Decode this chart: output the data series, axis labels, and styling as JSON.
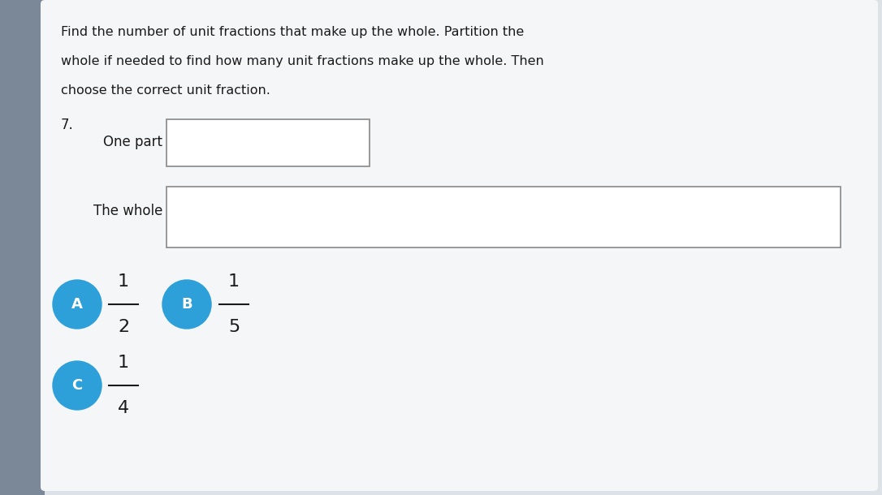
{
  "bg_left_color": "#8a9aaa",
  "bg_main_color": "#dde2e8",
  "card_color": "#f0f2f4",
  "white": "#ffffff",
  "border_color": "#888888",
  "text_color": "#1a1a1a",
  "circle_color": "#2d9fd9",
  "circle_text_color": "#ffffff",
  "title_line1": "Find the number of unit fractions that make up the whole. Partition the",
  "title_line2": "whole if needed to find how many unit fractions make up the whole. Then",
  "title_line3": "choose the correct unit fraction.",
  "question_num": "7.",
  "one_part_label": "One part",
  "whole_label": "The whole",
  "options": [
    {
      "letter": "A",
      "num": "1",
      "den": "2"
    },
    {
      "letter": "B",
      "num": "1",
      "den": "5"
    },
    {
      "letter": "C",
      "num": "1",
      "den": "4"
    }
  ],
  "figw": 10.86,
  "figh": 6.1,
  "dpi": 100
}
